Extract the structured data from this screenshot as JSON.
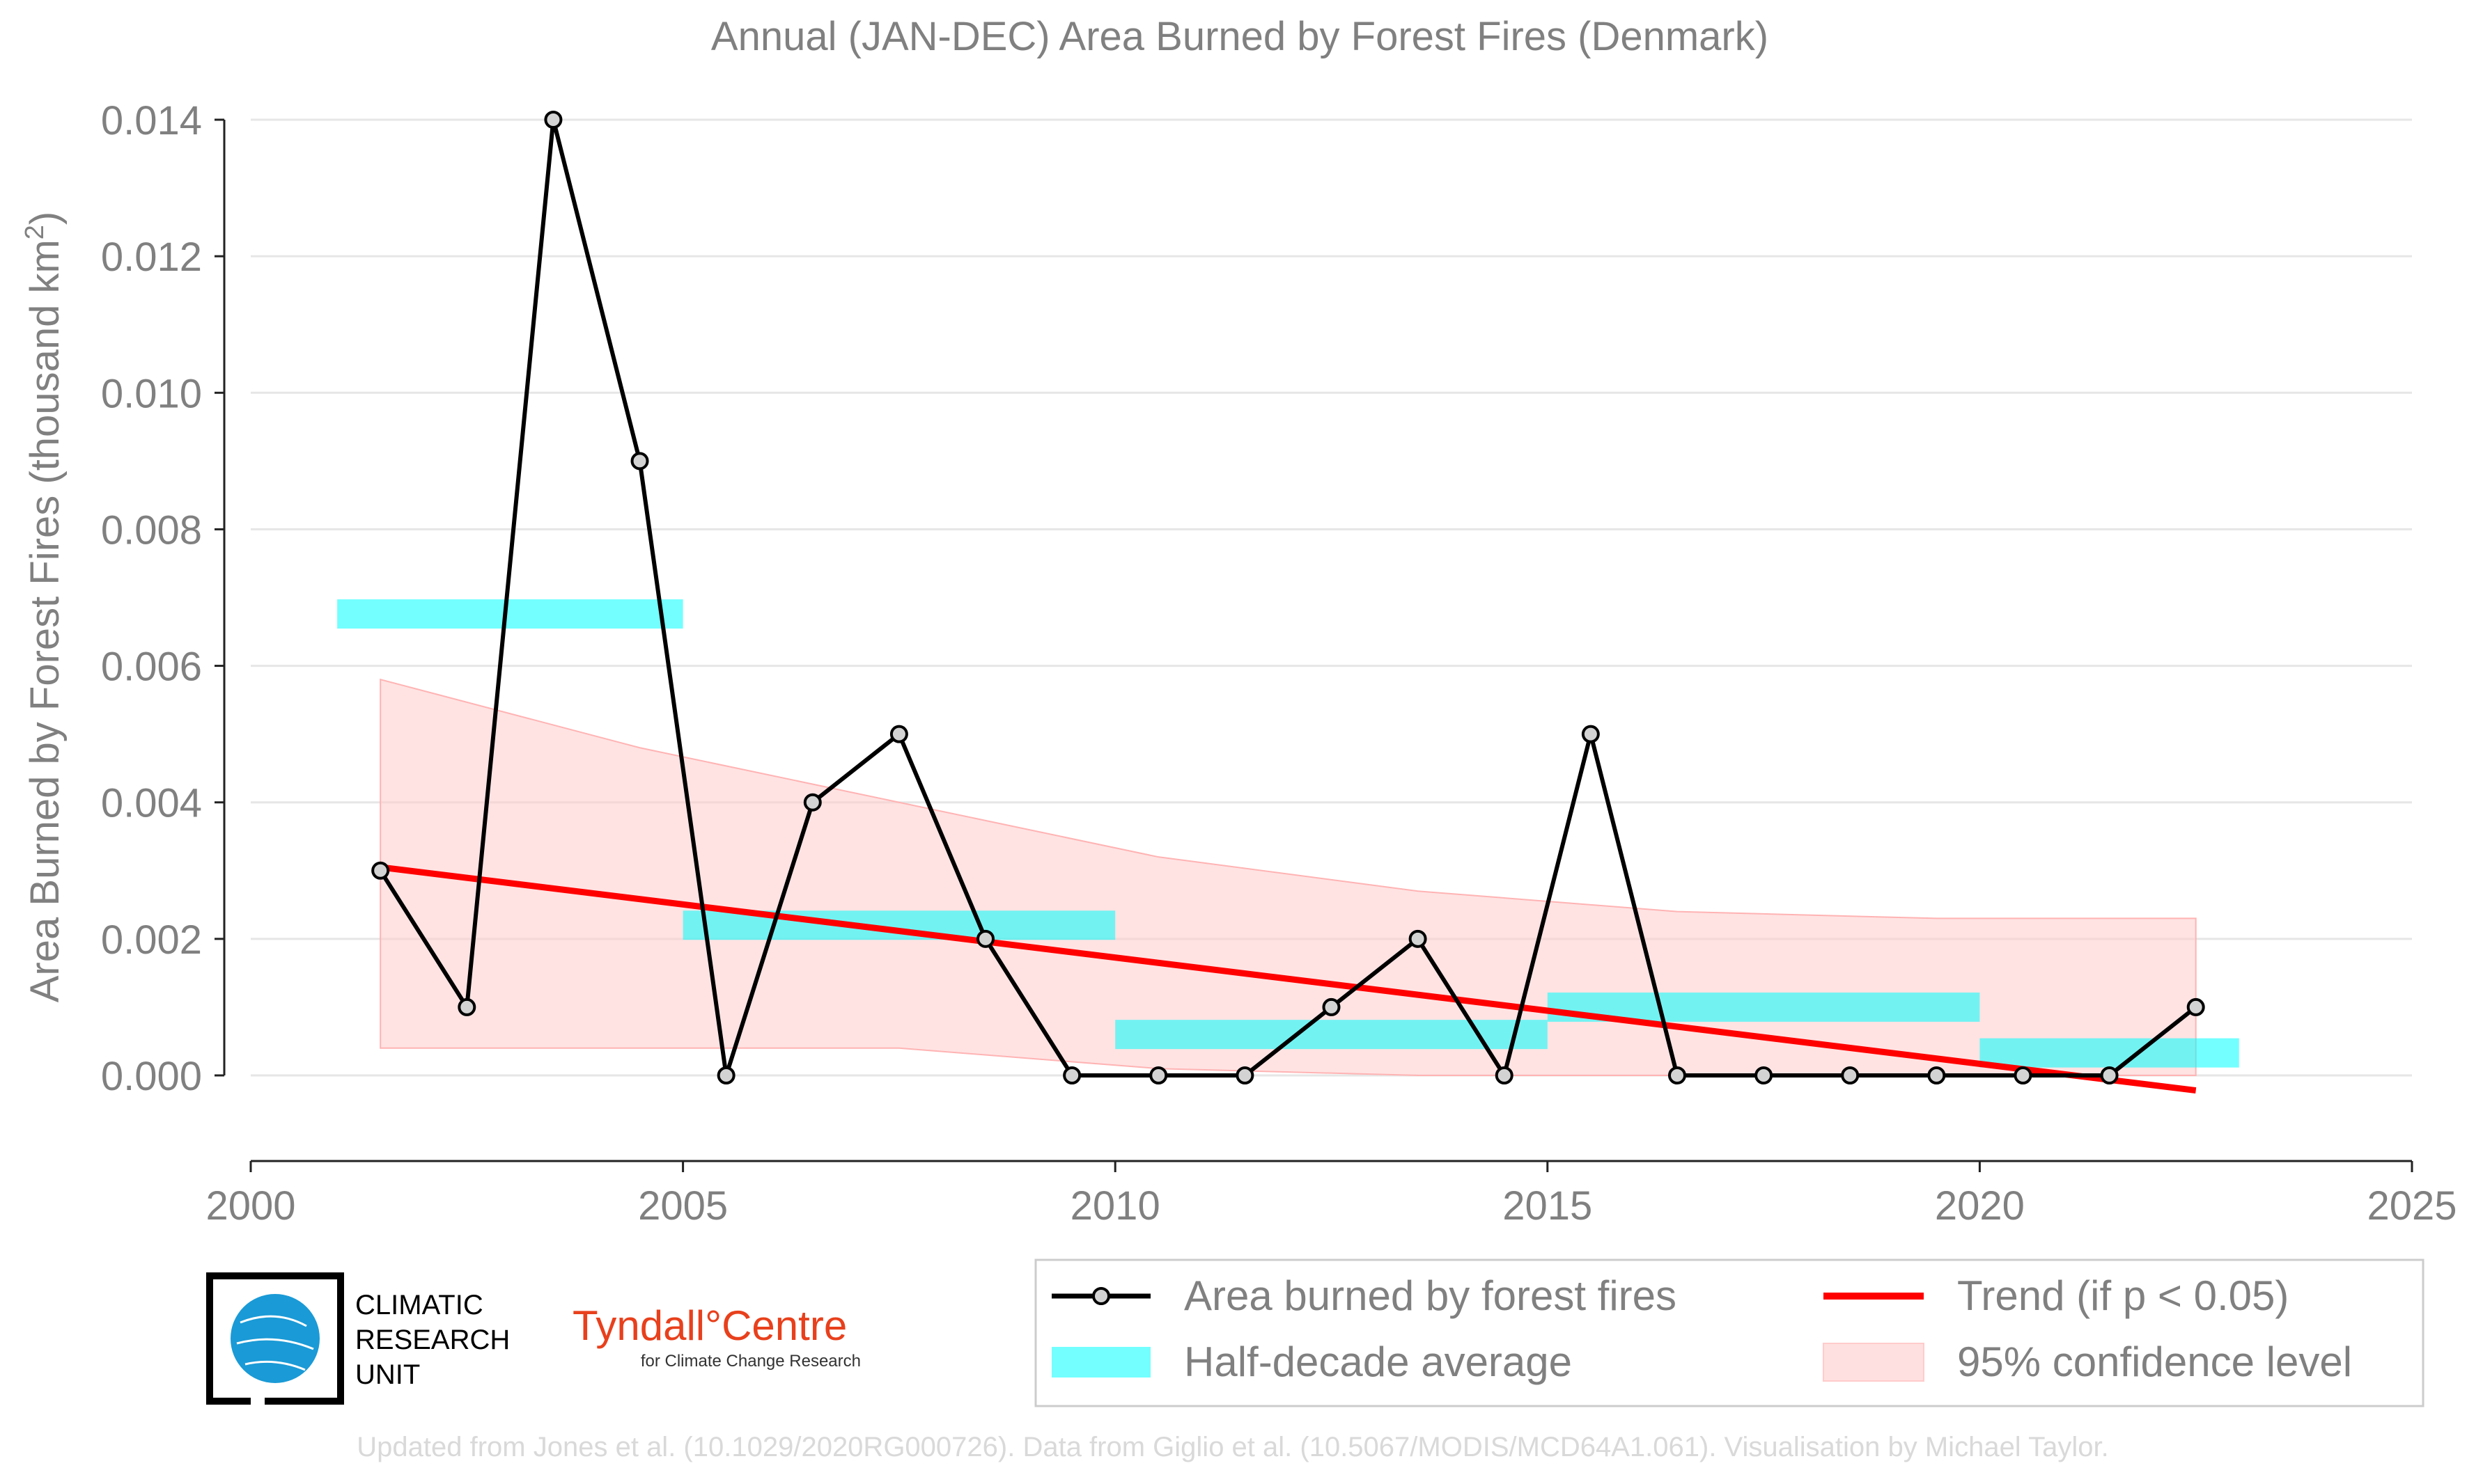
{
  "chart_data": {
    "type": "line",
    "title": "Annual (JAN-DEC) Area Burned by Forest Fires (Denmark)",
    "xlabel": "",
    "ylabel": "Area Burned by Forest Fires (thousand km",
    "ylabel_sup": "2",
    "ylabel_end": ")",
    "xlim": [
      2000,
      2025
    ],
    "ylim": [
      -0.0013,
      0.014
    ],
    "x_ticks": [
      2000,
      2005,
      2010,
      2015,
      2020,
      2025
    ],
    "x_tick_labels": [
      "2000",
      "2005",
      "2010",
      "2015",
      "2020",
      "2025"
    ],
    "y_ticks": [
      0,
      0.002,
      0.004,
      0.006,
      0.008,
      0.01,
      0.012,
      0.014
    ],
    "y_tick_labels": [
      "0.000",
      "0.002",
      "0.004",
      "0.006",
      "0.008",
      "0.010",
      "0.012",
      "0.014"
    ],
    "grid": "horizontal",
    "series": [
      {
        "name": "Area burned by forest fires",
        "color": "#000000",
        "marker_fill": "#d3d3d3",
        "x": [
          2001.5,
          2002.5,
          2003.5,
          2004.5,
          2005.5,
          2006.5,
          2007.5,
          2008.5,
          2009.5,
          2010.5,
          2011.5,
          2012.5,
          2013.5,
          2014.5,
          2015.5,
          2016.5,
          2017.5,
          2018.5,
          2019.5,
          2020.5,
          2021.5,
          2022.5
        ],
        "values": [
          0.003,
          0.001,
          0.014,
          0.009,
          0,
          0.004,
          0.005,
          0.002,
          0,
          0,
          0,
          0.001,
          0.002,
          0,
          0.005,
          0,
          0,
          0,
          0,
          0,
          0,
          0.001
        ]
      }
    ],
    "half_decade_average": {
      "name": "Half-decade average",
      "color": "#00ffff",
      "segments": [
        {
          "x": [
            2001,
            2005
          ],
          "value": 0.00676
        },
        {
          "x": [
            2005,
            2010
          ],
          "value": 0.0022
        },
        {
          "x": [
            2010,
            2015
          ],
          "value": 0.0006
        },
        {
          "x": [
            2015,
            2020
          ],
          "value": 0.001
        },
        {
          "x": [
            2020,
            2023
          ],
          "value": 0.00033
        }
      ]
    },
    "trend": {
      "name": "Trend (if p < 0.05)",
      "color": "#ff0000",
      "x": [
        2001.5,
        2022.5
      ],
      "values": [
        0.00305,
        -0.00022
      ]
    },
    "confidence": {
      "name": "95% confidence level",
      "color": "#ffcccc",
      "x": [
        2001.5,
        2004.5,
        2007.5,
        2010.5,
        2013.5,
        2016.5,
        2019.5,
        2022.5
      ],
      "upper": [
        0.0058,
        0.0048,
        0.004,
        0.0032,
        0.0027,
        0.0024,
        0.0023,
        0.0023
      ],
      "lower": [
        0.0004,
        0.0004,
        0.0004,
        0.0001,
        0.0,
        0.0,
        0.0,
        0.0
      ]
    },
    "legend_position": "bottom-right"
  },
  "logos": {
    "cru_text": [
      "CLIMATIC",
      "RESEARCH",
      "UNIT"
    ],
    "tyndall_main": "Tyndall°Centre",
    "tyndall_sub": "for Climate Change Research"
  },
  "footer": {
    "credit": "Updated from Jones et al. (10.1029/2020RG000726). Data from Giglio et al. (10.5067/MODIS/MCD64A1.061). Visualisation by Michael Taylor."
  }
}
